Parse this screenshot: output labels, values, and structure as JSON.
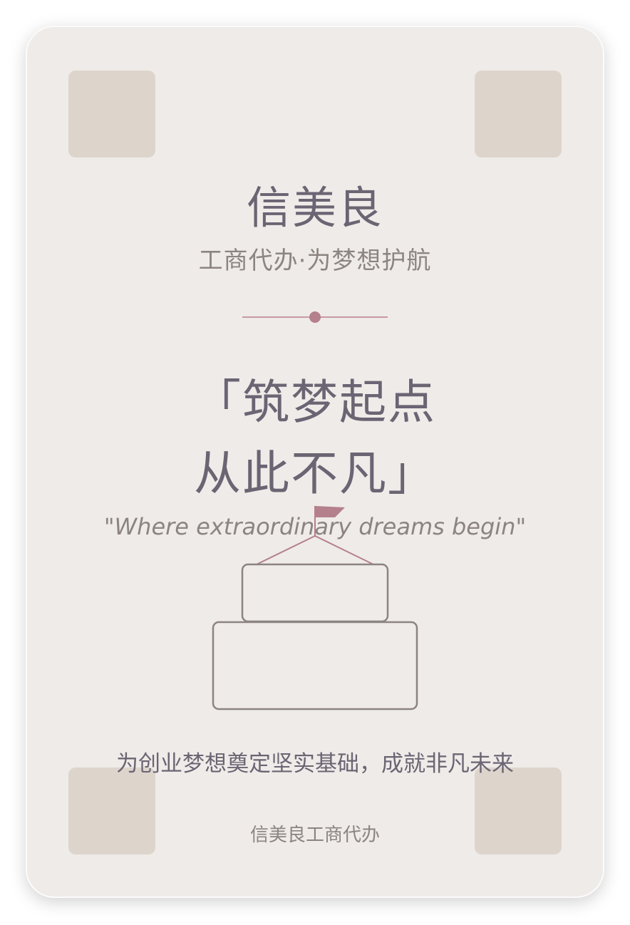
{
  "card": {
    "brand": "信美良",
    "tagline": "工商代办·为梦想护航",
    "headline_line1": "「筑梦起点",
    "headline_line2": "从此不凡」",
    "quote": "\"Where extraordinary dreams begin\"",
    "slogan": "为创业梦想奠定坚实基础，成就非凡未来",
    "footer": "信美良工商代办"
  },
  "illustration": {
    "icon": "building-with-flag-icon"
  },
  "colors": {
    "background": "#efebe8",
    "corner_block": "#ddd5cc",
    "primary_text": "#6b6473",
    "secondary_text": "#8c8480",
    "accent": "#b4808c"
  }
}
